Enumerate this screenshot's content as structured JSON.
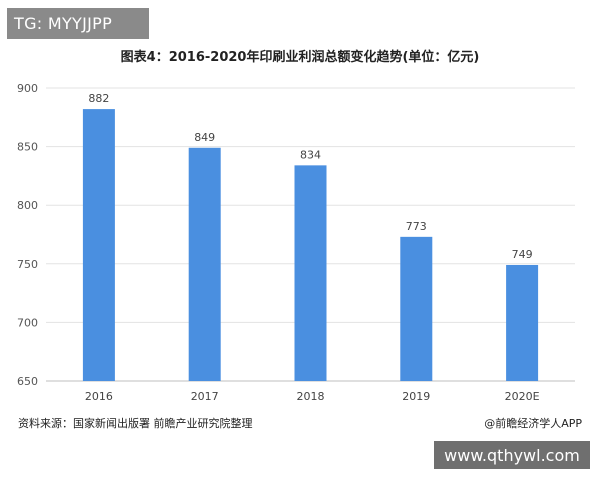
{
  "overlay": {
    "tag_text": "TG: MYYJJPP",
    "site_text": "www.qthywl.com"
  },
  "chart_data": {
    "type": "bar",
    "title": "图表4：2016-2020年印刷业利润总额变化趋势(单位：亿元)",
    "categories": [
      "2016",
      "2017",
      "2018",
      "2019",
      "2020E"
    ],
    "values": [
      882,
      849,
      834,
      773,
      749
    ],
    "ylim": [
      650,
      900
    ],
    "yticks": [
      650,
      700,
      750,
      800,
      850,
      900
    ],
    "grid": true,
    "bar_color": "#4a8fe0"
  },
  "footer": {
    "source": "资料来源：国家新闻出版署 前瞻产业研究院整理",
    "credit": "@前瞻经济学人APP"
  }
}
